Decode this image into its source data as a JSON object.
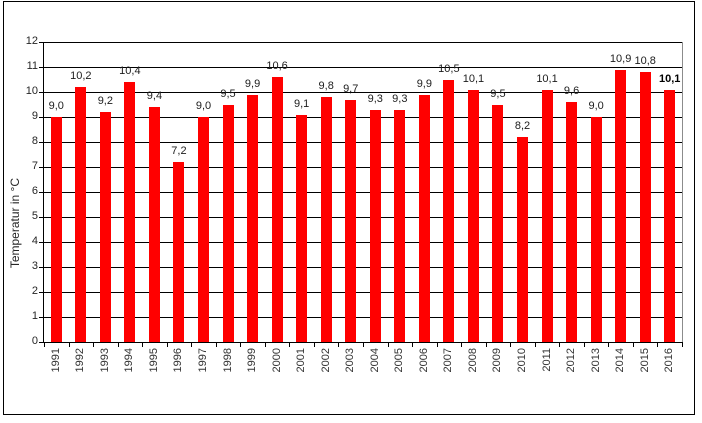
{
  "chart_data": {
    "type": "bar",
    "title": "",
    "xlabel": "",
    "ylabel": "Temperatur in °C",
    "categories": [
      "1991",
      "1992",
      "1993",
      "1994",
      "1995",
      "1996",
      "1997",
      "1998",
      "1999",
      "2000",
      "2001",
      "2002",
      "2003",
      "2004",
      "2005",
      "2006",
      "2007",
      "2008",
      "2009",
      "2010",
      "2011",
      "2012",
      "2013",
      "2014",
      "2015",
      "2016"
    ],
    "values": [
      9.0,
      10.2,
      9.2,
      10.4,
      9.4,
      7.2,
      9.0,
      9.5,
      9.9,
      10.6,
      9.1,
      9.8,
      9.7,
      9.3,
      9.3,
      9.9,
      10.5,
      10.1,
      9.5,
      8.2,
      10.1,
      9.6,
      9.0,
      10.9,
      10.8,
      10.1
    ],
    "data_labels": [
      "9,0",
      "10,2",
      "9,2",
      "10,4",
      "9,4",
      "7,2",
      "9,0",
      "9,5",
      "9,9",
      "10,6",
      "9,1",
      "9,8",
      "9,7",
      "9,3",
      "9,3",
      "9,9",
      "10,5",
      "10,1",
      "9,5",
      "8,2",
      "10,1",
      "9,6",
      "9,0",
      "10,9",
      "10,8",
      "10,1"
    ],
    "bold_label_index": 25,
    "ylim": [
      0,
      12
    ],
    "ytick_interval": 1,
    "y_tick_labels": [
      "0",
      "1",
      "2",
      "3",
      "4",
      "5",
      "6",
      "7",
      "8",
      "9",
      "10",
      "11",
      "12"
    ],
    "grid": true,
    "legend": false,
    "decimal_separator": ",",
    "colors": {
      "bar": "#ff0000",
      "gridline": "#000000",
      "plot_border": "#8c8c8c",
      "axis": "#000000",
      "label_text": "#1c1c1c"
    }
  }
}
